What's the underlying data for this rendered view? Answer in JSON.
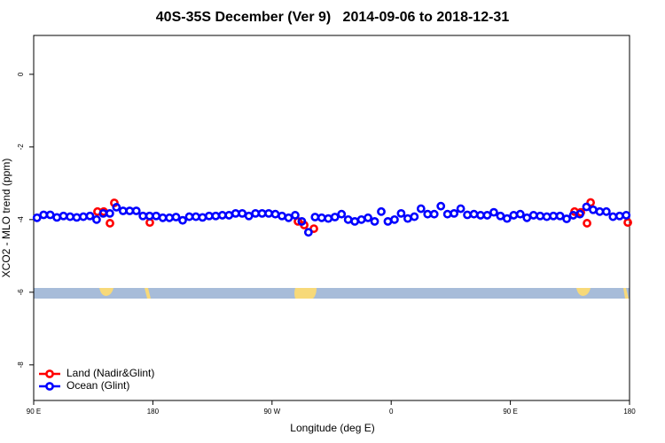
{
  "chart_data": {
    "type": "scatter",
    "title": "40S-35S December (Ver 9)   2014-09-06 to 2018-12-31",
    "x_label": "Longitude (deg E)",
    "y_label": "XCO2 - MLO trend (ppm)",
    "xlim": [
      90,
      540
    ],
    "ylim": [
      -8.98,
      1.07
    ],
    "xticks": [
      {
        "value": 90,
        "label": "90 E"
      },
      180,
      {
        "value": 270,
        "label": "90 W"
      },
      {
        "value": 360,
        "label": "0"
      },
      {
        "value": 450,
        "label": "90 E"
      },
      {
        "value": 540,
        "label": "180"
      }
    ],
    "yticks": [
      0,
      -2,
      -4,
      -6,
      -8
    ],
    "legend": "bottom-left",
    "series": [
      {
        "name": "Land (Nadir&Glint)",
        "color": "#ff0000",
        "x": [
          138.2,
          142.9,
          147.6,
          150.9,
          177.7,
          289.6,
          294.3,
          301.6,
          498.5,
          503.2,
          507.9,
          510.6,
          538.7
        ],
        "values": [
          -3.78,
          -3.78,
          -4.1,
          -3.54,
          -4.08,
          -4.05,
          -4.15,
          -4.25,
          -3.78,
          -3.8,
          -4.1,
          -3.53,
          -4.08
        ]
      },
      {
        "name": "Ocean (Glint)",
        "color": "#0000ff",
        "x": [
          92.5,
          97.5,
          102.5,
          107.5,
          112.5,
          117.5,
          122.5,
          127.5,
          132.5,
          137.5,
          142.5,
          147.5,
          152.5,
          157.5,
          162.5,
          167.5,
          172.5,
          177.5,
          182.5,
          187.5,
          192.5,
          197.5,
          202.5,
          207.5,
          212.5,
          217.5,
          222.5,
          227.5,
          232.5,
          237.5,
          242.5,
          247.5,
          252.5,
          257.5,
          262.5,
          267.5,
          272.5,
          277.5,
          282.5,
          287.5,
          292.5,
          297.5,
          302.5,
          307.5,
          312.5,
          317.5,
          322.5,
          327.5,
          332.5,
          337.5,
          342.5,
          347.5,
          352.5,
          357.5,
          362.5,
          367.5,
          372.5,
          377.5,
          382.5,
          387.5,
          392.5,
          397.5,
          402.5,
          407.5,
          412.5,
          417.5,
          422.5,
          427.5,
          432.5,
          437.5,
          442.5,
          447.5,
          452.5,
          457.5,
          462.5,
          467.5,
          472.5,
          477.5,
          482.5,
          487.5,
          492.5,
          497.5,
          502.5,
          507.5,
          512.5,
          517.5,
          522.5,
          527.5,
          532.5,
          537.5
        ],
        "values": [
          -3.95,
          -3.87,
          -3.87,
          -3.94,
          -3.9,
          -3.92,
          -3.94,
          -3.92,
          -3.9,
          -4.0,
          -3.83,
          -3.83,
          -3.66,
          -3.76,
          -3.76,
          -3.76,
          -3.9,
          -3.9,
          -3.9,
          -3.95,
          -3.95,
          -3.93,
          -4.02,
          -3.92,
          -3.92,
          -3.94,
          -3.9,
          -3.9,
          -3.88,
          -3.88,
          -3.83,
          -3.83,
          -3.9,
          -3.83,
          -3.83,
          -3.83,
          -3.85,
          -3.9,
          -3.95,
          -3.88,
          -4.05,
          -4.35,
          -3.93,
          -3.95,
          -3.97,
          -3.93,
          -3.85,
          -4.0,
          -4.05,
          -4.0,
          -3.95,
          -4.05,
          -3.78,
          -4.05,
          -4.0,
          -3.83,
          -3.97,
          -3.92,
          -3.7,
          -3.85,
          -3.85,
          -3.63,
          -3.85,
          -3.83,
          -3.7,
          -3.87,
          -3.85,
          -3.88,
          -3.88,
          -3.8,
          -3.9,
          -3.97,
          -3.88,
          -3.85,
          -3.95,
          -3.88,
          -3.9,
          -3.92,
          -3.9,
          -3.9,
          -3.98,
          -3.88,
          -3.85,
          -3.65,
          -3.73,
          -3.78,
          -3.78,
          -3.92,
          -3.9,
          -3.88
        ]
      }
    ]
  }
}
